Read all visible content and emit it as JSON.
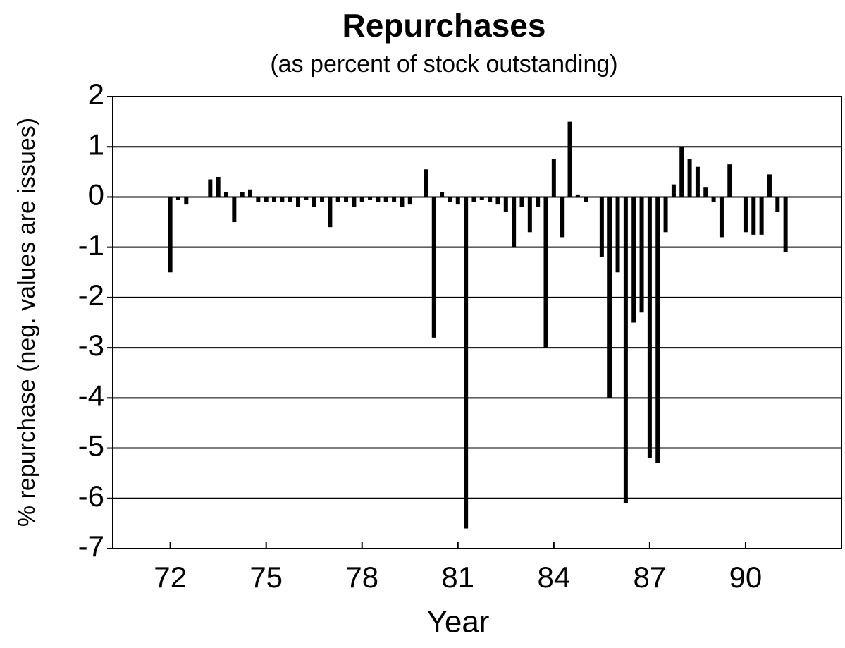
{
  "chart_data": {
    "type": "bar",
    "title": "Repurchases",
    "subtitle": "(as percent of stock outstanding)",
    "xlabel": "Year",
    "ylabel": "% repurchase  (neg. values are issues)",
    "x": [
      72,
      72.25,
      72.5,
      72.75,
      73,
      73.25,
      73.5,
      73.75,
      74,
      74.25,
      74.5,
      74.75,
      75,
      75.25,
      75.5,
      75.75,
      76,
      76.25,
      76.5,
      76.75,
      77,
      77.25,
      77.5,
      77.75,
      78,
      78.25,
      78.5,
      78.75,
      79,
      79.25,
      79.5,
      79.75,
      80,
      80.25,
      80.5,
      80.75,
      81,
      81.25,
      81.5,
      81.75,
      82,
      82.25,
      82.5,
      82.75,
      83,
      83.25,
      83.5,
      83.75,
      84,
      84.25,
      84.5,
      84.75,
      85,
      85.25,
      85.5,
      85.75,
      86,
      86.25,
      86.5,
      86.75,
      87,
      87.25,
      87.5,
      87.75,
      88,
      88.25,
      88.5,
      88.75,
      89,
      89.25,
      89.5,
      89.75,
      90,
      90.25,
      90.5,
      90.75,
      91,
      91.25
    ],
    "values": [
      -1.5,
      -0.05,
      -0.15,
      0,
      0,
      0.35,
      0.4,
      0.1,
      -0.5,
      0.1,
      0.15,
      -0.1,
      -0.1,
      -0.1,
      -0.1,
      -0.1,
      -0.2,
      -0.05,
      -0.2,
      -0.1,
      -0.6,
      -0.1,
      -0.1,
      -0.2,
      -0.1,
      -0.05,
      -0.1,
      -0.1,
      -0.1,
      -0.2,
      -0.15,
      0,
      0.55,
      -2.8,
      0.1,
      -0.1,
      -0.15,
      -6.6,
      -0.1,
      -0.05,
      -0.1,
      -0.15,
      -0.3,
      -1.0,
      -0.2,
      -0.7,
      -0.2,
      -3.0,
      0.75,
      -0.8,
      1.5,
      0.05,
      -0.1,
      0,
      -1.2,
      -4.0,
      -1.5,
      -6.1,
      -2.5,
      -2.3,
      -5.2,
      -5.3,
      -0.7,
      0.25,
      1.0,
      0.75,
      0.6,
      0.2,
      -0.1,
      -0.8,
      0.65,
      0,
      -0.7,
      -0.75,
      -0.75,
      0.45,
      -0.3,
      -1.1
    ],
    "color": "#000000",
    "xlim": [
      70.2,
      93
    ],
    "xticks": [
      72,
      75,
      78,
      81,
      84,
      87,
      90
    ],
    "ylim": [
      -7,
      2
    ],
    "yticks": [
      -7,
      -6,
      -5,
      -4,
      -3,
      -2,
      -1,
      0,
      1,
      2
    ],
    "grid": true
  }
}
